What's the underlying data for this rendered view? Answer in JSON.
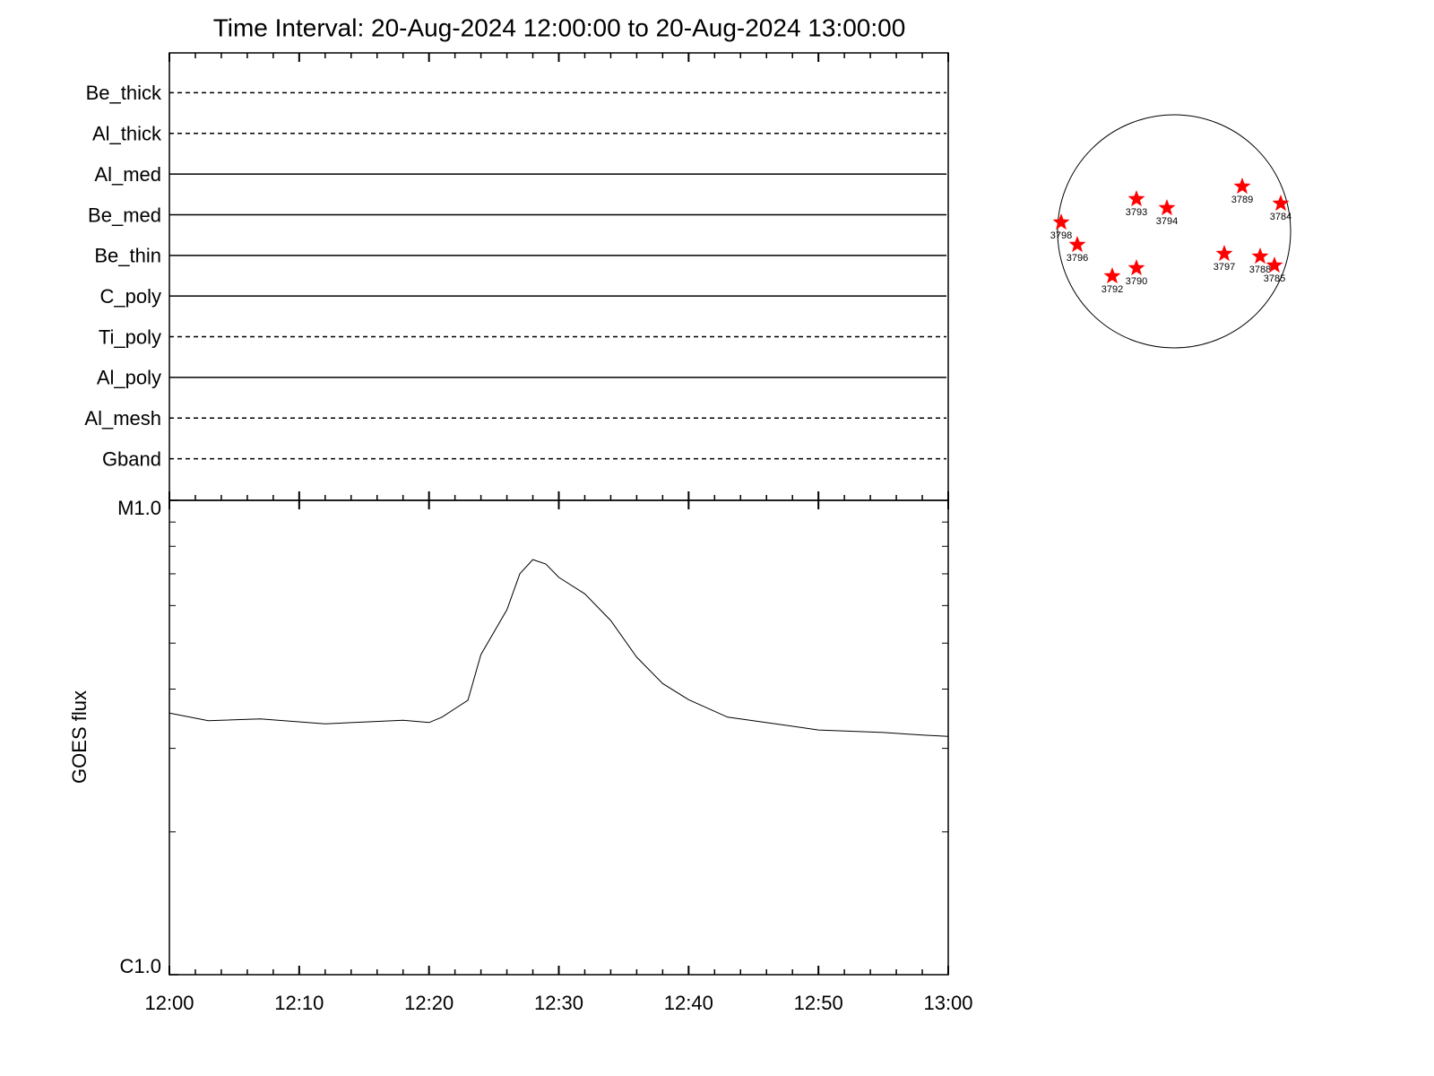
{
  "chart_data": [
    {
      "type": "filters",
      "title": "Time Interval: 20-Aug-2024 12:00:00 to 20-Aug-2024 13:00:00",
      "filters": [
        {
          "name": "Be_thick",
          "style": "dashed"
        },
        {
          "name": "Al_thick",
          "style": "dashed"
        },
        {
          "name": "Al_med",
          "style": "solid"
        },
        {
          "name": "Be_med",
          "style": "solid"
        },
        {
          "name": "Be_thin",
          "style": "solid"
        },
        {
          "name": "C_poly",
          "style": "solid"
        },
        {
          "name": "Ti_poly",
          "style": "dashed"
        },
        {
          "name": "Al_poly",
          "style": "solid"
        },
        {
          "name": "Al_mesh",
          "style": "dashed"
        },
        {
          "name": "Gband",
          "style": "dashed"
        }
      ]
    },
    {
      "type": "line",
      "ylabel": "GOES flux",
      "x": [
        0,
        3,
        7,
        12,
        18,
        20,
        21,
        23,
        24,
        26,
        27,
        28,
        29,
        30,
        32,
        34,
        36,
        38,
        40,
        43,
        47,
        50,
        55,
        58,
        60
      ],
      "values": [
        3.56e-06,
        3.43e-06,
        3.46e-06,
        3.38e-06,
        3.44e-06,
        3.4e-06,
        3.49e-06,
        3.79e-06,
        4.73e-06,
        5.88e-06,
        7e-06,
        7.5e-06,
        7.34e-06,
        6.88e-06,
        6.35e-06,
        5.58e-06,
        4.67e-06,
        4.11e-06,
        3.8e-06,
        3.49e-06,
        3.37e-06,
        3.28e-06,
        3.24e-06,
        3.2e-06,
        3.18e-06
      ],
      "color": "#000000",
      "xlim": [
        0,
        60
      ],
      "xticks": [
        {
          "value": 0,
          "label": "12:00"
        },
        {
          "value": 10,
          "label": "12:10"
        },
        {
          "value": 20,
          "label": "12:20"
        },
        {
          "value": 30,
          "label": "12:30"
        },
        {
          "value": 40,
          "label": "12:40"
        },
        {
          "value": 50,
          "label": "12:50"
        },
        {
          "value": 60,
          "label": "13:00"
        }
      ],
      "xminorticks": [
        2,
        4,
        6,
        8,
        12,
        14,
        16,
        18,
        22,
        24,
        26,
        28,
        32,
        34,
        36,
        38,
        42,
        44,
        46,
        48,
        52,
        54,
        56,
        58
      ],
      "ylim": [
        1e-06,
        1e-05
      ],
      "ylog": true,
      "yticks": [
        {
          "value": 1e-06,
          "label": "C1.0"
        },
        {
          "value": 1e-05,
          "label": "M1.0"
        }
      ],
      "yminorticks": [
        2e-06,
        3e-06,
        4e-06,
        5e-06,
        6e-06,
        7e-06,
        8e-06,
        9e-06
      ]
    },
    {
      "type": "disk",
      "color": "#ff0000",
      "regions": [
        "3793",
        "3794",
        "3789",
        "3784",
        "3798",
        "3796",
        "3797",
        "3788",
        "3785",
        "3792",
        "3790"
      ]
    }
  ]
}
